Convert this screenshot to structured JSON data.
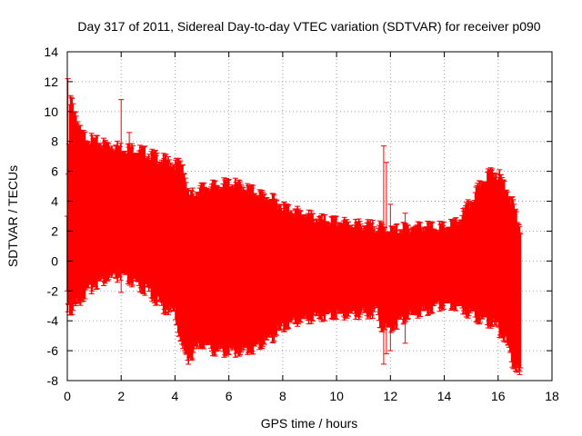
{
  "chart_data": {
    "type": "line",
    "title": "Day 317 of 2011, Sidereal Day-to-day VTEC variation (SDTVAR) for receiver p090",
    "xlabel": "GPS time / hours",
    "ylabel": "SDTVAR / TECUs",
    "xlim": [
      0,
      18
    ],
    "ylim": [
      -8,
      14
    ],
    "xticks": [
      "0",
      "2",
      "4",
      "6",
      "8",
      "10",
      "12",
      "14",
      "16",
      "18"
    ],
    "yticks": [
      "-8",
      "-6",
      "-4",
      "-2",
      "0",
      "2",
      "4",
      "6",
      "8",
      "10",
      "12",
      "14"
    ],
    "grid": true,
    "color": "#ff0000",
    "series": [
      {
        "name": "SDTVAR envelope (error bars)",
        "x": [
          0.0,
          0.1,
          0.3,
          0.5,
          0.8,
          1.0,
          1.5,
          2.0,
          2.5,
          3.0,
          3.5,
          4.0,
          4.3,
          4.5,
          5.0,
          5.5,
          6.0,
          6.5,
          7.0,
          7.5,
          8.0,
          8.5,
          9.0,
          9.5,
          10.0,
          10.5,
          11.0,
          11.5,
          11.7,
          12.0,
          12.5,
          13.0,
          13.5,
          14.0,
          14.5,
          15.0,
          15.5,
          15.8,
          16.0,
          16.3,
          16.6,
          16.85
        ],
        "upper": [
          3.0,
          11.0,
          10.0,
          8.5,
          8.2,
          8.0,
          7.8,
          7.6,
          7.5,
          7.2,
          6.8,
          6.5,
          6.5,
          4.3,
          4.9,
          5.0,
          5.2,
          5.0,
          4.6,
          4.2,
          3.7,
          3.3,
          3.0,
          2.7,
          2.6,
          2.5,
          2.4,
          2.3,
          2.2,
          2.0,
          2.2,
          2.3,
          2.3,
          2.2,
          2.6,
          4.0,
          5.6,
          6.0,
          5.8,
          5.0,
          3.5,
          2.0
        ],
        "lower": [
          -2.0,
          -3.5,
          -3.0,
          -2.5,
          -2.0,
          -1.5,
          -1.2,
          -1.0,
          -1.5,
          -2.0,
          -3.0,
          -3.5,
          -6.0,
          -6.5,
          -5.5,
          -6.0,
          -6.0,
          -6.0,
          -5.8,
          -5.2,
          -4.5,
          -4.0,
          -3.8,
          -3.6,
          -3.5,
          -3.6,
          -3.5,
          -3.4,
          -4.5,
          -4.5,
          -3.8,
          -3.5,
          -3.2,
          -2.8,
          -3.0,
          -3.5,
          -4.0,
          -4.2,
          -4.5,
          -5.5,
          -7.0,
          -7.5
        ]
      },
      {
        "name": "Outlier error bars",
        "points": [
          {
            "x": 0.02,
            "low": -3.4,
            "high": 12.2
          },
          {
            "x": 2.0,
            "low": -2.1,
            "high": 10.8
          },
          {
            "x": 2.3,
            "low": -1.5,
            "high": 8.6
          },
          {
            "x": 11.75,
            "low": -6.9,
            "high": 7.7
          },
          {
            "x": 11.85,
            "low": -6.2,
            "high": 6.6
          },
          {
            "x": 12.0,
            "low": -6.0,
            "high": 3.8
          },
          {
            "x": 12.55,
            "low": -5.5,
            "high": 3.2
          },
          {
            "x": 16.8,
            "low": -7.6,
            "high": 1.9
          }
        ]
      }
    ]
  }
}
